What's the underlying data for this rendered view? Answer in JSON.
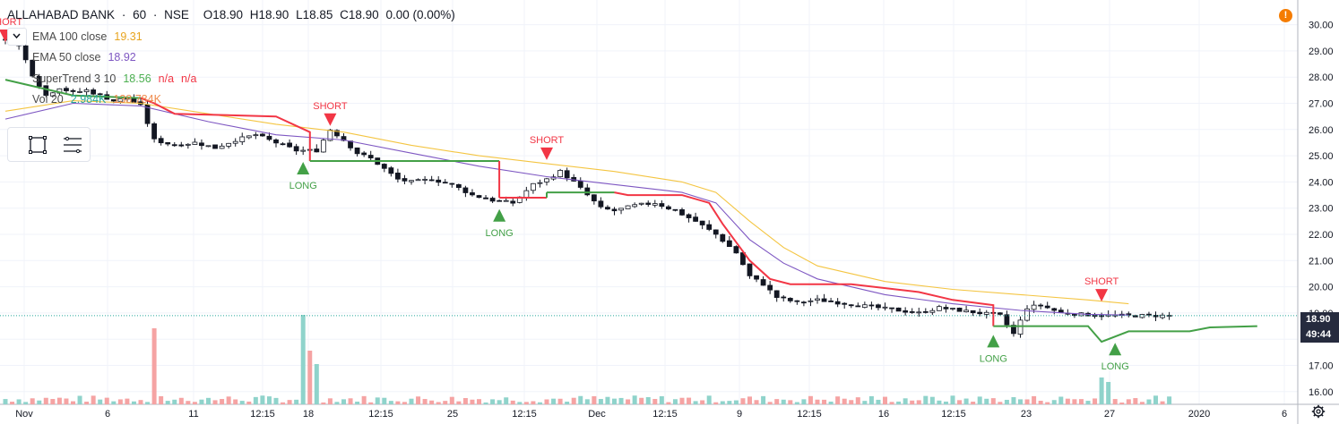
{
  "header": {
    "symbol": "ALLAHABAD BANK",
    "interval": "60",
    "exchange": "NSE",
    "ohlc": {
      "o": "O18.90",
      "h": "H18.90",
      "l": "L18.85",
      "c": "C18.90",
      "chg": "0.00 (0.00%)"
    }
  },
  "indicators": [
    {
      "label": "EMA 100 close",
      "values": [
        "19.31"
      ],
      "color": "#e8a41e"
    },
    {
      "label": "EMA 50 close",
      "values": [
        "18.92"
      ],
      "color": "#7e57c2"
    },
    {
      "label": "SuperTrend 3 10",
      "values": [
        "18.56",
        "n/a",
        "n/a"
      ],
      "color": "#4caf50"
    },
    {
      "label": "Vol 20",
      "values": [
        "2.984K",
        "138.784K"
      ],
      "color": "#26a69a"
    }
  ],
  "price_tag": {
    "last": "18.90",
    "countdown": "49:44",
    "color": "#262b3e"
  },
  "toolbar": {
    "icons": [
      "rectangle-icon",
      "lines-icon",
      "chevron-down-icon"
    ]
  },
  "alert_badge": "!",
  "chart_data": {
    "type": "candlestick",
    "y_axis": {
      "ticks": [
        "30.00",
        "29.00",
        "28.00",
        "27.00",
        "26.00",
        "25.00",
        "24.00",
        "23.00",
        "22.00",
        "21.00",
        "20.00",
        "19.00",
        "18.00",
        "17.00",
        "16.00"
      ],
      "range": [
        16.0,
        30.5
      ]
    },
    "x_axis": {
      "ticks": [
        "Nov",
        "6",
        "11",
        "12:15",
        "18",
        "12:15",
        "25",
        "12:15",
        "Dec",
        "12:15",
        "9",
        "12:15",
        "16",
        "12:15",
        "23",
        "27",
        "2020",
        "6"
      ]
    },
    "close_path": [
      [
        0,
        29.4
      ],
      [
        2,
        29.2
      ],
      [
        4,
        28.1
      ],
      [
        6,
        27.3
      ],
      [
        8,
        27.6
      ],
      [
        10,
        27.4
      ],
      [
        12,
        27.5
      ],
      [
        14,
        27.3
      ],
      [
        16,
        27.1
      ],
      [
        18,
        27.2
      ],
      [
        20,
        26.9
      ],
      [
        22,
        25.6
      ],
      [
        25,
        25.4
      ],
      [
        28,
        25.5
      ],
      [
        31,
        25.3
      ],
      [
        34,
        25.6
      ],
      [
        37,
        25.8
      ],
      [
        40,
        25.5
      ],
      [
        43,
        25.2
      ],
      [
        46,
        25.2
      ],
      [
        48,
        26.0
      ],
      [
        50,
        25.6
      ],
      [
        52,
        25.1
      ],
      [
        54,
        24.9
      ],
      [
        56,
        24.5
      ],
      [
        58,
        24.1
      ],
      [
        60,
        24.0
      ],
      [
        63,
        24.1
      ],
      [
        66,
        23.9
      ],
      [
        69,
        23.5
      ],
      [
        72,
        23.3
      ],
      [
        75,
        23.2
      ],
      [
        78,
        23.9
      ],
      [
        80,
        24.1
      ],
      [
        82,
        24.4
      ],
      [
        84,
        24.0
      ],
      [
        86,
        23.5
      ],
      [
        88,
        23.0
      ],
      [
        90,
        22.9
      ],
      [
        93,
        23.1
      ],
      [
        96,
        23.2
      ],
      [
        99,
        22.9
      ],
      [
        102,
        22.5
      ],
      [
        105,
        22.0
      ],
      [
        108,
        21.3
      ],
      [
        110,
        20.4
      ],
      [
        112,
        20.1
      ],
      [
        114,
        19.6
      ],
      [
        117,
        19.4
      ],
      [
        120,
        19.5
      ],
      [
        123,
        19.4
      ],
      [
        126,
        19.3
      ],
      [
        129,
        19.2
      ],
      [
        132,
        19.1
      ],
      [
        135,
        19.0
      ],
      [
        138,
        19.2
      ],
      [
        141,
        19.1
      ],
      [
        144,
        19.0
      ],
      [
        147,
        18.9
      ],
      [
        149,
        18.2
      ],
      [
        151,
        19.2
      ],
      [
        153,
        19.3
      ],
      [
        156,
        19.0
      ],
      [
        159,
        18.95
      ],
      [
        162,
        18.9
      ],
      [
        166,
        18.9
      ]
    ],
    "ema100": [
      [
        0,
        26.7
      ],
      [
        10,
        27.1
      ],
      [
        20,
        27.0
      ],
      [
        30,
        26.6
      ],
      [
        40,
        26.2
      ],
      [
        50,
        25.9
      ],
      [
        60,
        25.4
      ],
      [
        70,
        25.0
      ],
      [
        80,
        24.7
      ],
      [
        90,
        24.4
      ],
      [
        100,
        24.0
      ],
      [
        105,
        23.6
      ],
      [
        110,
        22.5
      ],
      [
        115,
        21.5
      ],
      [
        120,
        20.8
      ],
      [
        130,
        20.2
      ],
      [
        140,
        19.9
      ],
      [
        150,
        19.7
      ],
      [
        160,
        19.5
      ],
      [
        166,
        19.35
      ]
    ],
    "ema50": [
      [
        0,
        26.4
      ],
      [
        10,
        27.0
      ],
      [
        20,
        26.9
      ],
      [
        30,
        26.3
      ],
      [
        40,
        25.8
      ],
      [
        50,
        25.6
      ],
      [
        60,
        25.1
      ],
      [
        70,
        24.6
      ],
      [
        80,
        24.2
      ],
      [
        90,
        23.9
      ],
      [
        100,
        23.6
      ],
      [
        105,
        23.2
      ],
      [
        110,
        21.8
      ],
      [
        115,
        20.9
      ],
      [
        120,
        20.3
      ],
      [
        130,
        19.7
      ],
      [
        140,
        19.35
      ],
      [
        150,
        19.1
      ],
      [
        160,
        18.95
      ],
      [
        166,
        18.92
      ]
    ],
    "supertrend": [
      [
        0,
        27.9
      ],
      [
        10,
        27.3
      ],
      [
        20,
        27.2
      ],
      [
        22,
        27.0
      ],
      [
        25,
        26.6
      ],
      [
        40,
        26.5
      ],
      [
        45,
        25.9
      ],
      [
        45,
        24.8
      ],
      [
        50,
        24.8
      ],
      [
        73,
        24.8
      ],
      [
        73,
        23.4
      ],
      [
        80,
        23.4
      ],
      [
        80,
        23.6
      ],
      [
        90,
        23.6
      ],
      [
        92,
        23.5
      ],
      [
        100,
        23.5
      ],
      [
        104,
        23.2
      ],
      [
        106,
        22.4
      ],
      [
        108,
        21.7
      ],
      [
        110,
        21.0
      ],
      [
        113,
        20.3
      ],
      [
        116,
        20.1
      ],
      [
        125,
        20.1
      ],
      [
        135,
        19.8
      ],
      [
        140,
        19.5
      ],
      [
        146,
        19.3
      ],
      [
        146,
        18.5
      ],
      [
        160,
        18.5
      ],
      [
        162,
        17.9
      ],
      [
        166,
        18.3
      ],
      [
        175,
        18.3
      ],
      [
        178,
        18.45
      ],
      [
        185,
        18.5
      ]
    ],
    "signals": [
      {
        "type": "SHORT",
        "x": 0,
        "price": 29.2
      },
      {
        "type": "LONG",
        "x": 44,
        "price": 24.9
      },
      {
        "type": "SHORT",
        "x": 48,
        "price": 26.0
      },
      {
        "type": "LONG",
        "x": 73,
        "price": 23.1
      },
      {
        "type": "SHORT",
        "x": 80,
        "price": 24.7
      },
      {
        "type": "LONG",
        "x": 146,
        "price": 18.3
      },
      {
        "type": "SHORT",
        "x": 162,
        "price": 19.3
      },
      {
        "type": "LONG",
        "x": 164,
        "price": 18.0
      }
    ],
    "last_price": 18.9,
    "volume_spikes": [
      [
        22,
        0.85
      ],
      [
        44,
        1.0
      ],
      [
        45,
        0.6
      ],
      [
        46,
        0.45
      ],
      [
        162,
        0.3
      ],
      [
        163,
        0.25
      ]
    ]
  }
}
